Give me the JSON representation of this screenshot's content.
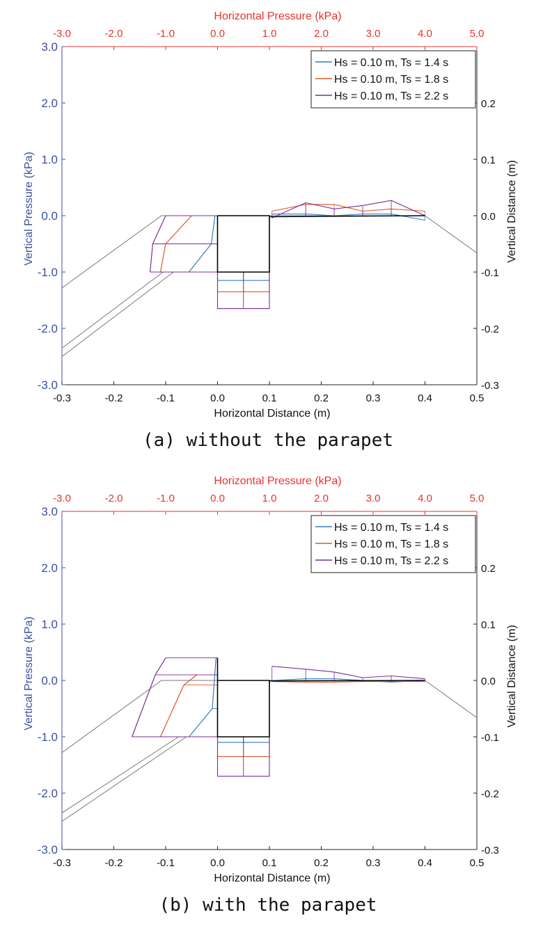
{
  "chart_data": [
    {
      "type": "line",
      "caption": "(a) without the parapet",
      "top_axis_label": "Horizontal Pressure (kPa)",
      "bottom_axis_label": "Horizontal Distance (m)",
      "left_axis_label": "Vertical Pressure (kPa)",
      "right_axis_label": "Vertical Distance (m)",
      "top_ticks": [
        "-3.0",
        "-2.0",
        "-1.0",
        "0.0",
        "1.0",
        "2.0",
        "3.0",
        "4.0",
        "5.0"
      ],
      "bottom_ticks": [
        "-0.3",
        "-0.2",
        "-0.1",
        "0.0",
        "0.1",
        "0.2",
        "0.3",
        "0.4",
        "0.5"
      ],
      "left_ticks": [
        "3.0",
        "2.0",
        "1.0",
        "0.0",
        "-1.0",
        "-2.0",
        "-3.0"
      ],
      "right_ticks": [
        "0.2",
        "0.1",
        "0.0",
        "-0.1",
        "-0.2",
        "-0.3"
      ],
      "xlim": [
        -0.3,
        0.5
      ],
      "ylim": [
        -0.3,
        0.3
      ],
      "top_xlim": [
        -3.0,
        5.0
      ],
      "left_ylim": [
        -3.0,
        3.0
      ],
      "legend_position": "top-right",
      "colors": {
        "top_axis": "#e8322b",
        "left_axis": "#3c4fa0",
        "structure": "#000000",
        "seabed": "#777777"
      },
      "series": [
        {
          "name": "Hs = 0.10 m, Ts = 1.4 s",
          "color": "#2f7bbf",
          "front": [
            [
              -0.005,
              0.0
            ],
            [
              -0.012,
              -0.05
            ],
            [
              -0.055,
              -0.1
            ]
          ],
          "bottom": [
            [
              0.0,
              -0.115
            ],
            [
              0.1,
              -0.115
            ]
          ],
          "top": [
            [
              0.105,
              0.003
            ],
            [
              0.17,
              0.003
            ],
            [
              0.225,
              0.0
            ],
            [
              0.28,
              0.003
            ],
            [
              0.335,
              0.003
            ],
            [
              0.4,
              -0.008
            ]
          ]
        },
        {
          "name": "Hs = 0.10 m, Ts = 1.8 s",
          "color": "#e0552b",
          "front": [
            [
              -0.05,
              0.0
            ],
            [
              -0.1,
              -0.05
            ],
            [
              -0.11,
              -0.1
            ]
          ],
          "bottom": [
            [
              0.0,
              -0.135
            ],
            [
              0.1,
              -0.135
            ]
          ],
          "top": [
            [
              0.105,
              0.008
            ],
            [
              0.17,
              0.02
            ],
            [
              0.225,
              0.02
            ],
            [
              0.28,
              0.008
            ],
            [
              0.335,
              0.012
            ],
            [
              0.4,
              0.008
            ]
          ]
        },
        {
          "name": "Hs = 0.10 m, Ts = 2.2 s",
          "color": "#7a2d9a",
          "front": [
            [
              -0.1,
              0.0
            ],
            [
              -0.125,
              -0.05
            ],
            [
              -0.13,
              -0.1
            ]
          ],
          "bottom": [
            [
              0.0,
              -0.165
            ],
            [
              0.1,
              -0.165
            ]
          ],
          "top": [
            [
              0.105,
              -0.004
            ],
            [
              0.17,
              0.023
            ],
            [
              0.225,
              0.012
            ],
            [
              0.28,
              0.018
            ],
            [
              0.335,
              0.027
            ],
            [
              0.4,
              0.0
            ]
          ]
        }
      ],
      "structure": [
        [
          0.0,
          0.0
        ],
        [
          0.0,
          -0.1
        ],
        [
          0.1,
          -0.1
        ],
        [
          0.1,
          0.0
        ],
        [
          0.0,
          0.0
        ]
      ],
      "deck": [
        [
          0.1,
          -0.002
        ],
        [
          0.4,
          0.0
        ]
      ],
      "seabed": [
        [
          [
            -0.3,
            -0.128
          ],
          [
            -0.108,
            0.0
          ],
          [
            0.4,
            0.0
          ],
          [
            0.5,
            -0.066
          ]
        ],
        [
          [
            -0.3,
            -0.235
          ],
          [
            -0.105,
            -0.1
          ]
        ],
        [
          [
            -0.3,
            -0.25
          ],
          [
            -0.085,
            -0.1
          ]
        ]
      ]
    },
    {
      "type": "line",
      "caption": "(b) with the parapet",
      "top_axis_label": "Horizontal Pressure (kPa)",
      "bottom_axis_label": "Horizontal Distance (m)",
      "left_axis_label": "Vertical Pressure (kPa)",
      "right_axis_label": "Vertical Distance (m)",
      "top_ticks": [
        "-3.0",
        "-2.0",
        "-1.0",
        "0.0",
        "1.0",
        "2.0",
        "3.0",
        "4.0",
        "5.0"
      ],
      "bottom_ticks": [
        "-0.3",
        "-0.2",
        "-0.1",
        "0.0",
        "0.1",
        "0.2",
        "0.3",
        "0.4",
        "0.5"
      ],
      "left_ticks": [
        "3.0",
        "2.0",
        "1.0",
        "0.0",
        "-1.0",
        "-2.0",
        "-3.0"
      ],
      "right_ticks": [
        "0.2",
        "0.1",
        "0.0",
        "-0.1",
        "-0.2",
        "-0.3"
      ],
      "xlim": [
        -0.3,
        0.5
      ],
      "ylim": [
        -0.3,
        0.3
      ],
      "top_xlim": [
        -3.0,
        5.0
      ],
      "left_ylim": [
        -3.0,
        3.0
      ],
      "legend_position": "top-right",
      "colors": {
        "top_axis": "#e8322b",
        "left_axis": "#3c4fa0",
        "structure": "#000000",
        "seabed": "#777777"
      },
      "series": [
        {
          "name": "Hs = 0.10 m, Ts = 1.4 s",
          "color": "#2f7bbf",
          "front": [
            [
              -0.003,
              0.04
            ],
            [
              -0.01,
              -0.05
            ],
            [
              -0.055,
              -0.1
            ]
          ],
          "bottom": [
            [
              0.0,
              -0.11
            ],
            [
              0.1,
              -0.11
            ]
          ],
          "top": [
            [
              0.105,
              0.0
            ],
            [
              0.17,
              0.003
            ],
            [
              0.225,
              0.003
            ],
            [
              0.28,
              0.0
            ],
            [
              0.335,
              -0.003
            ],
            [
              0.4,
              0.0
            ]
          ]
        },
        {
          "name": "Hs = 0.10 m, Ts = 1.8 s",
          "color": "#e0552b",
          "front": [
            [
              -0.04,
              0.01
            ],
            [
              -0.065,
              -0.008
            ],
            [
              -0.11,
              -0.1
            ]
          ],
          "bottom": [
            [
              0.0,
              -0.135
            ],
            [
              0.1,
              -0.135
            ]
          ],
          "top": [
            [
              0.105,
              -0.002
            ],
            [
              0.17,
              -0.003
            ],
            [
              0.225,
              -0.003
            ],
            [
              0.28,
              -0.002
            ],
            [
              0.335,
              -0.002
            ],
            [
              0.4,
              -0.002
            ]
          ]
        },
        {
          "name": "Hs = 0.10 m, Ts = 2.2 s",
          "color": "#7a2d9a",
          "front": [
            [
              -0.1,
              0.04
            ],
            [
              -0.12,
              0.01
            ],
            [
              -0.165,
              -0.1
            ]
          ],
          "bottom": [
            [
              0.0,
              -0.17
            ],
            [
              0.1,
              -0.17
            ]
          ],
          "top": [
            [
              0.105,
              0.025
            ],
            [
              0.17,
              0.02
            ],
            [
              0.225,
              0.015
            ],
            [
              0.28,
              0.005
            ],
            [
              0.335,
              0.008
            ],
            [
              0.4,
              0.003
            ]
          ]
        }
      ],
      "structure": [
        [
          0.0,
          0.04
        ],
        [
          0.0,
          -0.1
        ],
        [
          0.1,
          -0.1
        ],
        [
          0.1,
          0.0
        ],
        [
          0.0,
          0.0
        ]
      ],
      "deck": [
        [
          0.1,
          -0.001
        ],
        [
          0.4,
          0.0
        ]
      ],
      "seabed": [
        [
          [
            -0.3,
            -0.128
          ],
          [
            -0.108,
            0.0
          ],
          [
            0.4,
            0.0
          ],
          [
            0.5,
            -0.066
          ]
        ],
        [
          [
            -0.3,
            -0.235
          ],
          [
            -0.075,
            -0.1
          ]
        ],
        [
          [
            -0.3,
            -0.25
          ],
          [
            -0.06,
            -0.1
          ]
        ]
      ]
    }
  ]
}
